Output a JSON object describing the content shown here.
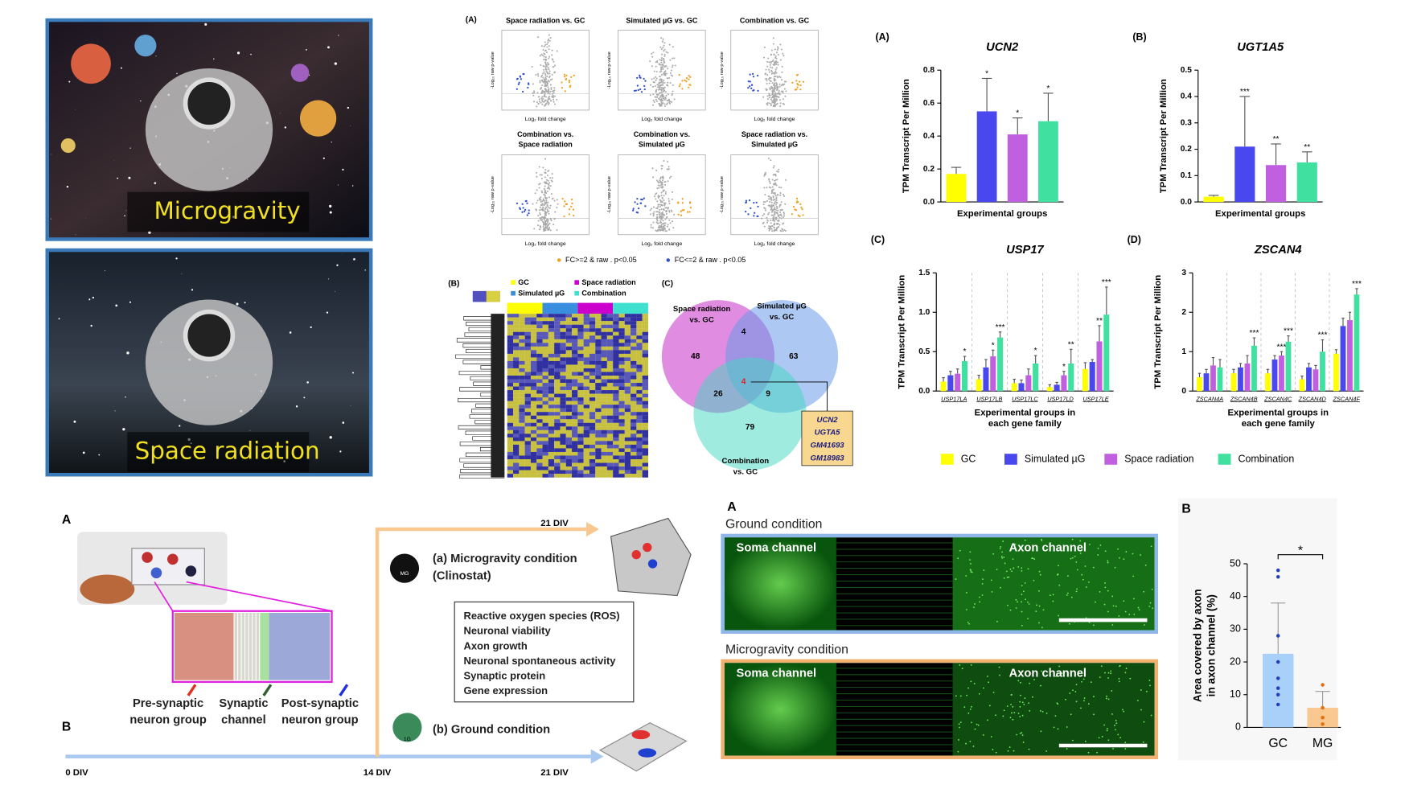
{
  "photos": {
    "microgravity": "Microgravity",
    "space_radiation": "Space radiation"
  },
  "volcano": {
    "label": "(A)",
    "plots": [
      [
        "Space radiation vs. GC"
      ],
      [
        "Simulated µG vs. GC"
      ],
      [
        "Combination vs. GC"
      ],
      [
        "Combination vs.",
        "Space radiation"
      ],
      [
        "Combination vs.",
        "Simulated µG"
      ],
      [
        "Space radiation vs.",
        "Simulated µG"
      ]
    ],
    "x_label": "Log₂ fold change",
    "y_label": "-Log₁₀ raw p-value",
    "legend": [
      {
        "name": "FC>=2 & raw . p<0.05",
        "color": "#f0a020"
      },
      {
        "name": "FC<=2 & raw . p<0.05",
        "color": "#3050d0"
      }
    ]
  },
  "heatmap": {
    "label": "(B)",
    "groups": [
      {
        "name": "GC",
        "color": "#ffff00"
      },
      {
        "name": "Space radiation",
        "color": "#cc00cc"
      },
      {
        "name": "Simulated µG",
        "color": "#3a8ee0"
      },
      {
        "name": "Combination",
        "color": "#40e0d0"
      }
    ]
  },
  "venn": {
    "label": "(C)",
    "sets": [
      [
        "Space radiation",
        "vs. GC"
      ],
      [
        "Simulated µG",
        "vs. GC"
      ],
      [
        "Combination",
        "vs. GC"
      ]
    ],
    "regions": [
      48,
      4,
      63,
      26,
      4,
      9,
      79
    ],
    "genes": [
      "UCN2",
      "UGTA5",
      "GM41693",
      "GM18983"
    ]
  },
  "groups": [
    {
      "name": "GC",
      "color": "#ffff00"
    },
    {
      "name": "Simulated µG",
      "color": "#4848ee"
    },
    {
      "name": "Space radiation",
      "color": "#c060e0"
    },
    {
      "name": "Combination",
      "color": "#40e0a0"
    }
  ],
  "bar_charts": [
    {
      "label": "(A)",
      "title": "UCN2",
      "y_label": "TPM Transcript Per Million",
      "x_label": [
        "Experimental groups"
      ],
      "ylim": [
        0,
        0.8
      ],
      "yticks": [
        {
          "value": 0,
          "label": "0.0"
        },
        0.2,
        0.4,
        0.6,
        0.8
      ],
      "values": [
        0.17,
        0.55,
        0.41,
        0.49
      ],
      "errors": [
        0.04,
        0.2,
        0.1,
        0.17
      ],
      "stars": [
        null,
        "*",
        "*",
        "*"
      ]
    },
    {
      "label": "(B)",
      "title": "UGT1A5",
      "y_label": "TPM Transcript Per Million",
      "x_label": [
        "Experimental groups"
      ],
      "ylim": [
        0,
        0.5
      ],
      "yticks": [
        {
          "value": 0,
          "label": "0.0"
        },
        0.1,
        0.2,
        0.3,
        0.4,
        0.5
      ],
      "values": [
        0.02,
        0.21,
        0.14,
        0.15
      ],
      "errors": [
        0.005,
        0.19,
        0.08,
        0.04
      ],
      "stars": [
        null,
        "***",
        "**",
        "**"
      ]
    },
    {
      "label": "(C)",
      "title": "USP17",
      "y_label": "TPM Transcript Per Million",
      "x_label": [
        "Experimental groups in",
        "each gene family"
      ],
      "ylim": [
        0,
        1.5
      ],
      "yticks": [
        {
          "value": 0,
          "label": "0.0"
        },
        0.5,
        {
          "value": 1,
          "label": "1.0"
        },
        1.5
      ],
      "categories": [
        "USP17LA",
        "USP17LB",
        "USP17LC",
        "USP17LD",
        "USP17LE"
      ],
      "series": [
        {
          "values": [
            0.12,
            0.15,
            0.1,
            0.05,
            0.28
          ],
          "errors": [
            0.05,
            0.05,
            0.05,
            0.03,
            0.08
          ]
        },
        {
          "values": [
            0.2,
            0.3,
            0.1,
            0.08,
            0.37
          ],
          "errors": [
            0.05,
            0.1,
            0.04,
            0.03,
            0.03
          ]
        },
        {
          "values": [
            0.22,
            0.44,
            0.2,
            0.2,
            0.63
          ],
          "errors": [
            0.06,
            0.08,
            0.08,
            0.05,
            0.2
          ],
          "stars": [
            null,
            "*",
            null,
            "*",
            "**"
          ]
        },
        {
          "values": [
            0.38,
            0.68,
            0.35,
            0.35,
            0.97
          ],
          "errors": [
            0.06,
            0.07,
            0.1,
            0.18,
            0.35
          ],
          "stars": [
            "*",
            "***",
            "*",
            "**",
            "***"
          ]
        }
      ]
    },
    {
      "label": "(D)",
      "title": "ZSCAN4",
      "y_label": "TPM Transcript Per Million",
      "x_label": [
        "Experimental groups in",
        "each gene family"
      ],
      "ylim": [
        0,
        3
      ],
      "yticks": [
        0,
        1,
        2,
        3
      ],
      "categories": [
        "ZSCAN4A",
        "ZSCAN4B",
        "ZSCAN4C",
        "ZSCAN4D",
        "ZSCAN4F"
      ],
      "series": [
        {
          "values": [
            0.35,
            0.45,
            0.45,
            0.3,
            0.95
          ],
          "errors": [
            0.1,
            0.1,
            0.1,
            0.08,
            0.1
          ]
        },
        {
          "values": [
            0.45,
            0.6,
            0.8,
            0.6,
            1.65
          ],
          "errors": [
            0.1,
            0.1,
            0.1,
            0.1,
            0.2
          ]
        },
        {
          "values": [
            0.65,
            0.7,
            0.9,
            0.55,
            1.8
          ],
          "errors": [
            0.2,
            0.2,
            0.1,
            0.1,
            0.2
          ],
          "stars": [
            null,
            null,
            "***",
            null,
            null
          ]
        },
        {
          "values": [
            0.6,
            1.15,
            1.25,
            1,
            2.45
          ],
          "errors": [
            0.2,
            0.2,
            0.15,
            0.3,
            0.15
          ],
          "stars": [
            null,
            "***",
            "***",
            "***",
            "***"
          ]
        }
      ]
    }
  ],
  "device": {
    "label_a": "A",
    "label_b": "B",
    "regions": [
      [
        "Pre-synaptic",
        "neuron group"
      ],
      [
        "Synaptic",
        "channel"
      ],
      [
        "Post-synaptic",
        "neuron group"
      ]
    ],
    "mg_badge": "MG",
    "g_badge": "1G",
    "microgravity": [
      "(a) Microgravity condition",
      "(Clinostat)"
    ],
    "ground": "(b) Ground condition",
    "assays": [
      "Reactive oxygen species (ROS)",
      "Neuronal viability",
      "Axon growth",
      "Neuronal spontaneous activity",
      "Synaptic protein",
      "Gene expression"
    ],
    "timeline": [
      "0 DIV",
      "14 DIV",
      "21 DIV",
      "21 DIV"
    ]
  },
  "micrographs": {
    "label": "A",
    "panels": [
      {
        "title": "Ground condition",
        "soma": "Soma channel",
        "axon": "Axon channel"
      },
      {
        "title": "Microgravity condition",
        "soma": "Soma channel",
        "axon": "Axon channel"
      }
    ]
  },
  "axon_chart": {
    "label": "B",
    "categories": [
      "GC",
      "MG"
    ],
    "values": [
      22.5,
      6
    ],
    "errors": [
      15.5,
      5
    ],
    "colors": [
      "#a8d0f8",
      "#f8c890"
    ],
    "point_colors": [
      "#2040c0",
      "#e07010"
    ],
    "points": [
      [
        48,
        46,
        28,
        20,
        15,
        12,
        10,
        7
      ],
      [
        13,
        6,
        3,
        1
      ]
    ],
    "ylim": [
      0,
      50
    ],
    "yticks": [
      0,
      10,
      20,
      30,
      40,
      50
    ],
    "y_label": [
      "Area covered by axon",
      "in axon channel (%)"
    ],
    "significance": "*"
  }
}
